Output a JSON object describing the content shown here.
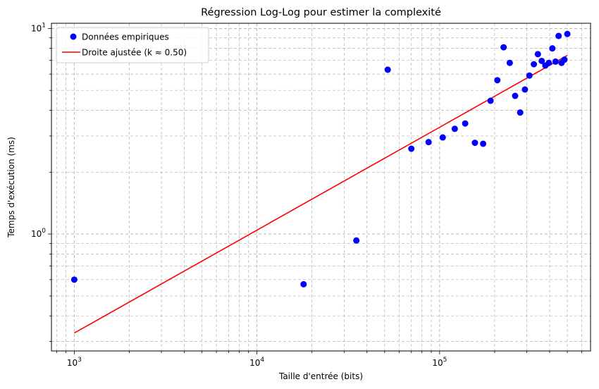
{
  "chart_data": {
    "type": "scatter",
    "title": "Régression Log-Log pour estimer la complexité",
    "xlabel": "Taille d'entrée (bits)",
    "ylabel": "Temps d'exécution (ms)",
    "xscale": "log",
    "yscale": "log",
    "xlim": [
      750,
      670000
    ],
    "ylim": [
      0.27,
      10.6
    ],
    "grid": "major and minor, dashed gray",
    "legend_position": "top-left",
    "x_ticks": [
      {
        "value": 1000,
        "base": "10",
        "exp": "3"
      },
      {
        "value": 10000,
        "base": "10",
        "exp": "4"
      },
      {
        "value": 100000,
        "base": "10",
        "exp": "5"
      }
    ],
    "y_ticks": [
      {
        "value": 1,
        "base": "10",
        "exp": "0"
      },
      {
        "value": 10,
        "base": "10",
        "exp": "1"
      }
    ],
    "series": [
      {
        "name": "Données empiriques",
        "kind": "scatter",
        "color": "#0000ff",
        "points": [
          [
            1000,
            0.6
          ],
          [
            18000,
            0.57
          ],
          [
            35000,
            0.93
          ],
          [
            52000,
            6.3
          ],
          [
            70000,
            2.6
          ],
          [
            87000,
            2.8
          ],
          [
            104000,
            2.95
          ],
          [
            121000,
            3.25
          ],
          [
            138000,
            3.45
          ],
          [
            156000,
            2.78
          ],
          [
            173000,
            2.75
          ],
          [
            190000,
            4.45
          ],
          [
            207000,
            5.6
          ],
          [
            224000,
            8.1
          ],
          [
            242000,
            6.8
          ],
          [
            259000,
            4.7
          ],
          [
            276000,
            3.9
          ],
          [
            293000,
            5.05
          ],
          [
            310000,
            5.9
          ],
          [
            328000,
            6.7
          ],
          [
            345000,
            7.5
          ],
          [
            362000,
            6.95
          ],
          [
            379000,
            6.6
          ],
          [
            396000,
            6.8
          ],
          [
            414000,
            8.0
          ],
          [
            431000,
            6.9
          ],
          [
            448000,
            9.2
          ],
          [
            465000,
            6.8
          ],
          [
            482000,
            7.05
          ],
          [
            500000,
            9.4
          ]
        ]
      },
      {
        "name": "Droite ajustée (k ≈ 0.50)",
        "kind": "line",
        "color": "#ff0000",
        "points": [
          [
            1000,
            0.33
          ],
          [
            500000,
            7.4
          ]
        ]
      }
    ]
  }
}
